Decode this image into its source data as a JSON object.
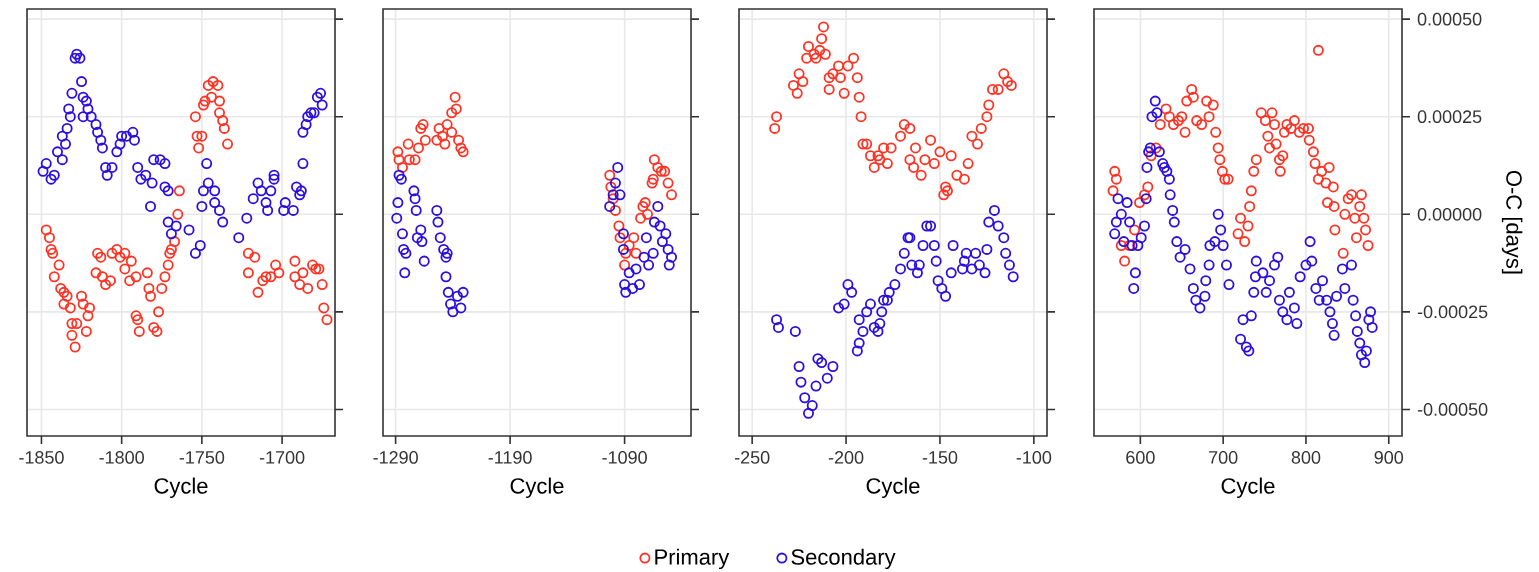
{
  "chart_data": [
    {
      "type": "scatter",
      "xlabel": "Cycle",
      "xlim": [
        -1859,
        -1667
      ],
      "xticks": [
        -1850,
        -1800,
        -1750,
        -1700
      ],
      "ylim": [
        -0.000568,
        0.000526
      ],
      "yticks": [
        {
          "value": 0.0005,
          "label": null
        },
        {
          "value": 0.00025,
          "label": null
        },
        {
          "value": 0,
          "label": null
        },
        {
          "value": -0.00025,
          "label": null
        },
        {
          "value": -0.0005,
          "label": null
        }
      ],
      "tick_labels": "x",
      "grid": true,
      "marker": "circle",
      "series": [
        {
          "color": "#ff3324",
          "x": [
            -1847,
            -1845,
            -1844,
            -1843,
            -1842,
            -1839,
            -1838,
            -1836,
            -1836,
            -1834,
            -1832,
            -1831,
            -1831,
            -1829,
            -1828,
            -1825,
            -1824,
            -1822,
            -1821,
            -1820,
            -1815,
            -1813,
            -1816,
            -1812,
            -1810,
            -1807,
            -1806,
            -1803,
            -1801,
            -1798,
            -1798,
            -1795,
            -1794,
            -1791,
            -1791,
            -1790,
            -1789,
            -1784,
            -1783,
            -1782,
            -1780,
            -1778,
            -1777,
            -1775,
            -1773,
            -1771,
            -1770,
            -1769,
            -1767,
            -1765,
            -1764,
            -1754,
            -1753,
            -1752,
            -1750,
            -1749,
            -1748,
            -1746,
            -1744,
            -1743,
            -1740,
            -1739,
            -1739,
            -1737,
            -1736,
            -1734,
            -1721,
            -1717,
            -1721,
            -1715,
            -1712,
            -1710,
            -1707,
            -1704,
            -1702,
            -1692,
            -1692,
            -1689,
            -1687,
            -1684,
            -1681,
            -1679,
            -1677,
            -1675,
            -1674,
            -1672
          ],
          "values": [
            -4e-05,
            -6e-05,
            -9e-05,
            -0.0001,
            -0.00016,
            -0.00013,
            -0.00019,
            -0.0002,
            -0.00023,
            -0.00021,
            -0.00024,
            -0.00028,
            -0.00031,
            -0.00034,
            -0.00028,
            -0.00021,
            -0.00023,
            -0.0003,
            -0.00026,
            -0.00024,
            -0.0001,
            -0.00011,
            -0.00015,
            -0.00016,
            -0.00018,
            -0.00017,
            -0.0001,
            -9e-05,
            -0.00011,
            -0.0001,
            -0.00014,
            -0.00017,
            -0.00012,
            -0.00016,
            -0.00026,
            -0.00027,
            -0.0003,
            -0.00015,
            -0.00019,
            -0.00021,
            -0.00029,
            -0.0003,
            -0.00025,
            -0.00019,
            -0.00016,
            -0.00013,
            -0.0001,
            -9e-05,
            -7e-05,
            0,
            6e-05,
            0.00025,
            0.0002,
            0.00017,
            0.0002,
            0.00028,
            0.00029,
            0.00033,
            0.0003,
            0.00034,
            0.00033,
            0.00029,
            0.00026,
            0.00024,
            0.00022,
            0.00018,
            -0.0001,
            -0.00011,
            -0.00015,
            -0.0002,
            -0.00017,
            -0.00016,
            -0.00016,
            -0.00013,
            -0.00015,
            -0.00012,
            -0.00016,
            -0.00018,
            -0.00015,
            -0.00019,
            -0.00013,
            -0.00014,
            -0.00014,
            -0.00018,
            -0.00024,
            -0.00027
          ]
        },
        {
          "color": "#2b0fe0",
          "x": [
            -1849,
            -1847,
            -1844,
            -1842,
            -1840,
            -1837,
            -1837,
            -1835,
            -1834,
            -1833,
            -1832,
            -1831,
            -1829,
            -1828,
            -1826,
            -1825,
            -1824,
            -1824,
            -1822,
            -1821,
            -1819,
            -1816,
            -1815,
            -1813,
            -1812,
            -1810,
            -1809,
            -1806,
            -1803,
            -1801,
            -1800,
            -1797,
            -1793,
            -1792,
            -1790,
            -1788,
            -1785,
            -1782,
            -1781,
            -1780,
            -1776,
            -1773,
            -1773,
            -1771,
            -1771,
            -1769,
            -1766,
            -1758,
            -1754,
            -1751,
            -1750,
            -1749,
            -1747,
            -1746,
            -1742,
            -1742,
            -1739,
            -1737,
            -1727,
            -1722,
            -1718,
            -1715,
            -1713,
            -1710,
            -1709,
            -1707,
            -1705,
            -1705,
            -1699,
            -1698,
            -1693,
            -1691,
            -1689,
            -1688,
            -1687,
            -1687,
            -1685,
            -1684,
            -1682,
            -1680,
            -1678,
            -1676,
            -1675
          ],
          "values": [
            0.00011,
            0.00013,
            9e-05,
            0.0001,
            0.00016,
            0.00014,
            0.0002,
            0.00018,
            0.00022,
            0.00027,
            0.00025,
            0.00031,
            0.0004,
            0.00041,
            0.0004,
            0.00034,
            0.0003,
            0.00025,
            0.00029,
            0.00027,
            0.00025,
            0.00023,
            0.00021,
            0.00019,
            0.00017,
            0.00012,
            0.0001,
            0.00012,
            0.00016,
            0.00018,
            0.0002,
            0.0002,
            0.00021,
            0.00019,
            0.00012,
            9e-05,
            0.0001,
            2e-05,
            8e-05,
            0.00014,
            0.00014,
            0.00013,
            7e-05,
            6e-05,
            -2e-05,
            -5e-05,
            -3e-05,
            -4e-05,
            -0.0001,
            -8e-05,
            2e-05,
            6e-05,
            0.00013,
            8e-05,
            6e-05,
            3e-05,
            1e-05,
            -2e-05,
            -6e-05,
            -1e-05,
            4e-05,
            8e-05,
            6e-05,
            3e-05,
            1e-05,
            6e-05,
            0.0001,
            9e-05,
            1e-05,
            3e-05,
            1e-05,
            7e-05,
            5e-05,
            6e-05,
            0.00013,
            0.00021,
            0.00023,
            0.00025,
            0.00026,
            0.00026,
            0.0003,
            0.00031,
            0.00028
          ]
        }
      ]
    },
    {
      "type": "scatter",
      "xlabel": "Cycle",
      "xlim": [
        -1301,
        -1032
      ],
      "xticks": [
        -1290,
        -1190,
        -1090
      ],
      "ylim": [
        -0.000568,
        0.000526
      ],
      "yticks": [
        {
          "value": 0.0005,
          "label": null
        },
        {
          "value": 0.00025,
          "label": null
        },
        {
          "value": 0,
          "label": null
        },
        {
          "value": -0.00025,
          "label": null
        },
        {
          "value": -0.0005,
          "label": null
        }
      ],
      "tick_labels": "x",
      "grid": true,
      "marker": "circle",
      "series": [
        {
          "color": "#ff3324",
          "x": [
            -1288,
            -1287,
            -1284,
            -1279,
            -1278,
            -1273,
            -1270,
            -1268,
            -1266,
            -1264,
            -1254,
            -1252,
            -1249,
            -1247,
            -1245,
            -1241,
            -1241,
            -1238,
            -1237,
            -1235,
            -1233,
            -1231,
            -1103,
            -1102,
            -1100,
            -1098,
            -1095,
            -1094,
            -1090,
            -1089,
            -1086,
            -1082,
            -1080,
            -1076,
            -1074,
            -1072,
            -1070,
            -1066,
            -1064,
            -1061,
            -1058,
            -1055,
            -1052,
            -1049,
            -1065
          ],
          "values": [
            0.00016,
            0.00014,
            0.00012,
            0.00018,
            0.00014,
            0.00014,
            0.00017,
            0.00022,
            0.00023,
            0.00019,
            0.00019,
            0.00022,
            0.0002,
            0.00018,
            0.00023,
            0.00021,
            0.00026,
            0.0003,
            0.00027,
            0.00019,
            0.00017,
            0.00016,
            0.0001,
            7e-05,
            4e-05,
            1e-05,
            -3e-05,
            -6e-05,
            -0.00013,
            -0.0001,
            -8e-05,
            -6e-05,
            -0.0001,
            -1e-05,
            2e-05,
            3e-05,
            0,
            8e-05,
            0.00014,
            0.00012,
            0.00011,
            0.00011,
            8e-05,
            5e-05,
            9e-05
          ]
        },
        {
          "color": "#2b0fe0",
          "x": [
            -1287,
            -1285,
            -1288,
            -1289,
            -1284,
            -1283,
            -1281,
            -1282,
            -1274,
            -1273,
            -1272,
            -1271,
            -1268,
            -1267,
            -1265,
            -1254,
            -1253,
            -1251,
            -1248,
            -1246,
            -1245,
            -1246,
            -1244,
            -1242,
            -1240,
            -1236,
            -1233,
            -1231,
            -1096,
            -1098,
            -1100,
            -1103,
            -1094,
            -1091,
            -1091,
            -1090,
            -1089,
            -1086,
            -1083,
            -1080,
            -1077,
            -1073,
            -1071,
            -1069,
            -1065,
            -1064,
            -1061,
            -1059,
            -1057,
            -1054,
            -1052,
            -1051,
            -1049
          ],
          "values": [
            0.0001,
            9e-05,
            3e-05,
            -1e-05,
            -5e-05,
            -9e-05,
            -0.0001,
            -0.00015,
            6e-05,
            4e-05,
            1e-05,
            -6e-05,
            -4e-05,
            -7e-05,
            -0.00012,
            1e-05,
            -2e-05,
            -6e-05,
            -9e-05,
            -0.00011,
            -0.0001,
            -0.00016,
            -0.0002,
            -0.00023,
            -0.00025,
            -0.00021,
            -0.00024,
            -0.0002,
            0.00012,
            8e-05,
            5e-05,
            2e-05,
            5e-05,
            -5e-05,
            -9e-05,
            -0.00018,
            -0.0002,
            -0.00015,
            -0.00019,
            -0.00014,
            -0.00018,
            -0.00011,
            -6e-05,
            -0.00013,
            -0.0001,
            -2e-05,
            2e-05,
            -3e-05,
            -7e-05,
            -5e-05,
            -9e-05,
            -0.00013,
            -0.00011
          ]
        }
      ]
    },
    {
      "type": "scatter",
      "xlabel": "Cycle",
      "xlim": [
        -257,
        -93
      ],
      "xticks": [
        -250,
        -200,
        -150,
        -100
      ],
      "ylim": [
        -0.000568,
        0.000526
      ],
      "yticks": [
        {
          "value": 0.0005,
          "label": null
        },
        {
          "value": 0.00025,
          "label": null
        },
        {
          "value": 0,
          "label": null
        },
        {
          "value": -0.00025,
          "label": null
        },
        {
          "value": -0.0005,
          "label": null
        }
      ],
      "tick_labels": "x",
      "grid": true,
      "marker": "circle",
      "series": [
        {
          "color": "#ff3324",
          "x": [
            -238,
            -237,
            -228,
            -226,
            -225,
            -223,
            -221,
            -220,
            -217,
            -216,
            -214,
            -213,
            -212,
            -211,
            -209,
            -209,
            -207,
            -204,
            -203,
            -201,
            -199,
            -196,
            -194,
            -193,
            -192,
            -191,
            -189,
            -187,
            -185,
            -183,
            -182,
            -180,
            -178,
            -176,
            -171,
            -169,
            -166,
            -166,
            -164,
            -163,
            -160,
            -158,
            -155,
            -153,
            -150,
            -148,
            -147,
            -146,
            -144,
            -141,
            -137,
            -135,
            -133,
            -130,
            -128,
            -125,
            -124,
            -122,
            -119,
            -116,
            -114,
            -112
          ],
          "values": [
            0.00022,
            0.00025,
            0.00033,
            0.00031,
            0.00036,
            0.00034,
            0.0004,
            0.00043,
            0.00041,
            0.0004,
            0.00042,
            0.00045,
            0.00048,
            0.00041,
            0.00035,
            0.00032,
            0.00036,
            0.00038,
            0.00035,
            0.00031,
            0.00038,
            0.0004,
            0.00035,
            0.0003,
            0.00025,
            0.00018,
            0.00018,
            0.00015,
            0.00012,
            0.00015,
            0.00014,
            0.00017,
            0.00013,
            0.00017,
            0.0002,
            0.00023,
            0.00022,
            0.00014,
            0.00012,
            0.00017,
            0.0001,
            0.00014,
            0.00019,
            0.00013,
            0.00016,
            5e-05,
            7e-05,
            6e-05,
            0.00015,
            0.0001,
            9e-05,
            0.00013,
            0.0002,
            0.00018,
            0.00022,
            0.00025,
            0.00028,
            0.00032,
            0.00032,
            0.00036,
            0.00034,
            0.00033
          ]
        },
        {
          "color": "#2b0fe0",
          "x": [
            -237,
            -236,
            -227,
            -225,
            -224,
            -222,
            -220,
            -218,
            -216,
            -215,
            -213,
            -210,
            -207,
            -204,
            -201,
            -199,
            -197,
            -194,
            -193,
            -193,
            -191,
            -189,
            -187,
            -185,
            -183,
            -182,
            -181,
            -180,
            -178,
            -177,
            -174,
            -171,
            -169,
            -167,
            -166,
            -165,
            -162,
            -161,
            -159,
            -157,
            -155,
            -153,
            -152,
            -151,
            -149,
            -147,
            -144,
            -143,
            -138,
            -137,
            -136,
            -133,
            -131,
            -129,
            -126,
            -125,
            -124,
            -121,
            -119,
            -116,
            -115,
            -113,
            -111
          ],
          "values": [
            -0.00027,
            -0.00029,
            -0.0003,
            -0.00039,
            -0.00043,
            -0.00047,
            -0.00051,
            -0.00049,
            -0.00044,
            -0.00037,
            -0.00038,
            -0.00042,
            -0.00039,
            -0.00024,
            -0.00023,
            -0.00018,
            -0.0002,
            -0.00035,
            -0.00033,
            -0.00027,
            -0.0003,
            -0.00025,
            -0.00023,
            -0.00029,
            -0.0003,
            -0.00028,
            -0.00025,
            -0.00022,
            -0.00022,
            -0.0002,
            -0.00018,
            -0.00014,
            -0.0001,
            -6e-05,
            -6e-05,
            -0.00013,
            -0.00015,
            -0.00013,
            -8e-05,
            -3e-05,
            -3e-05,
            -8e-05,
            -0.00012,
            -0.00017,
            -0.00019,
            -0.00021,
            -0.00015,
            -8e-05,
            -0.00014,
            -0.00012,
            -0.0001,
            -0.00014,
            -0.0001,
            -0.00013,
            -0.00015,
            -9e-05,
            -2e-05,
            1e-05,
            -3e-05,
            -6e-05,
            -0.0001,
            -0.00013,
            -0.00016
          ]
        }
      ]
    },
    {
      "type": "scatter",
      "xlabel": "Cycle",
      "ylabel": "O-C [days]",
      "xlim": [
        544,
        916
      ],
      "xticks": [
        600,
        700,
        800,
        900
      ],
      "ylim": [
        -0.000568,
        0.000526
      ],
      "yticks": [
        {
          "value": 0.0005,
          "label": "0.00050"
        },
        {
          "value": 0.00025,
          "label": "0.00025"
        },
        {
          "value": 0,
          "label": "0.00000"
        },
        {
          "value": -0.00025,
          "label": "-0.00025"
        },
        {
          "value": -0.0005,
          "label": "-0.00050"
        }
      ],
      "grid": true,
      "marker": "circle",
      "legend": "bottom",
      "series": [
        {
          "name": "Primary",
          "color": "#ff3324",
          "x": [
            567,
            569,
            571,
            577,
            581,
            587,
            593,
            599,
            605,
            609,
            613,
            619,
            624,
            631,
            635,
            640,
            646,
            650,
            654,
            656,
            662,
            664,
            668,
            674,
            680,
            683,
            688,
            691,
            694,
            696,
            699,
            702,
            706,
            718,
            721,
            726,
            730,
            732,
            734,
            737,
            740,
            746,
            751,
            754,
            756,
            759,
            762,
            764,
            768,
            769,
            772,
            774,
            777,
            782,
            786,
            792,
            797,
            803,
            804,
            809,
            815,
            811,
            815,
            819,
            824,
            828,
            833,
            826,
            834,
            835,
            845,
            847,
            851,
            855,
            859,
            861,
            865,
            867,
            870,
            872,
            875
          ],
          "values": [
            6e-05,
            0.00011,
            9e-05,
            -8e-05,
            -0.00012,
            -8e-05,
            -4e-05,
            3e-05,
            5e-05,
            7e-05,
            0.00015,
            0.00017,
            0.00023,
            0.00027,
            0.00025,
            0.00023,
            0.00024,
            0.00025,
            0.00021,
            0.00029,
            0.00032,
            0.0003,
            0.00024,
            0.00023,
            0.00029,
            0.00025,
            0.00028,
            0.00021,
            0.00017,
            0.00014,
            0.00011,
            9e-05,
            9e-05,
            -5e-05,
            -1e-05,
            -7e-05,
            -3e-05,
            2e-05,
            6e-05,
            0.00011,
            0.00014,
            0.00026,
            0.00024,
            0.0002,
            0.00017,
            0.00026,
            0.00023,
            0.00018,
            0.00014,
            0.00011,
            0.00015,
            0.00021,
            0.00023,
            0.00022,
            0.00024,
            0.00021,
            0.00022,
            0.00022,
            0.00019,
            0.00016,
            0.00042,
            0.00013,
            9e-05,
            0.00011,
            8e-05,
            0.00012,
            7e-05,
            3e-05,
            2e-05,
            -4e-05,
            -0.0001,
            0,
            4e-05,
            5e-05,
            -1e-05,
            -6e-05,
            2e-05,
            5e-05,
            -1e-05,
            -4e-05,
            -8e-05
          ]
        },
        {
          "name": "Secondary",
          "color": "#2b0fe0",
          "x": [
            569,
            573,
            571,
            577,
            580,
            584,
            587,
            590,
            592,
            594,
            597,
            601,
            605,
            607,
            608,
            610,
            612,
            614,
            618,
            620,
            623,
            627,
            629,
            632,
            635,
            636,
            639,
            641,
            644,
            648,
            654,
            660,
            664,
            667,
            672,
            678,
            679,
            683,
            684,
            690,
            694,
            697,
            700,
            704,
            707,
            721,
            724,
            728,
            731,
            734,
            737,
            739,
            740,
            748,
            752,
            756,
            762,
            766,
            768,
            772,
            777,
            780,
            786,
            789,
            793,
            800,
            805,
            807,
            812,
            816,
            820,
            825,
            829,
            832,
            834,
            837,
            844,
            847,
            855,
            857,
            860,
            862,
            865,
            867,
            871,
            873,
            876,
            878,
            880
          ],
          "values": [
            -5e-05,
            4e-05,
            -2e-05,
            0,
            -7e-05,
            3e-05,
            -2e-05,
            -8e-05,
            -0.00019,
            -0.00015,
            -8e-05,
            -6e-05,
            -3e-05,
            4e-05,
            0.00012,
            0.00016,
            0.00017,
            0.00025,
            0.00029,
            0.00026,
            0.00016,
            0.00013,
            0.00012,
            0.00011,
            9e-05,
            5e-05,
            1e-05,
            -2e-05,
            -7e-05,
            -0.00011,
            -9e-05,
            -0.00014,
            -0.00019,
            -0.00022,
            -0.00024,
            -0.00021,
            -0.00017,
            -0.00013,
            -8e-05,
            -7e-05,
            0,
            -4e-05,
            -8e-05,
            -0.00013,
            -0.00018,
            -0.00032,
            -0.00027,
            -0.00034,
            -0.00035,
            -0.00026,
            -0.0002,
            -0.00016,
            -0.00012,
            -0.00015,
            -0.0002,
            -0.00017,
            -0.00013,
            -0.00011,
            -0.00022,
            -0.00025,
            -0.00027,
            -0.0002,
            -0.00024,
            -0.00028,
            -0.00016,
            -0.00013,
            -7e-05,
            -0.00012,
            -0.00019,
            -0.00022,
            -0.00017,
            -0.00022,
            -0.00025,
            -0.00028,
            -0.00031,
            -0.00021,
            -0.00014,
            -0.00019,
            -0.00013,
            -0.00022,
            -0.00026,
            -0.0003,
            -0.00033,
            -0.00036,
            -0.00038,
            -0.00035,
            -0.00027,
            -0.00025,
            -0.00029
          ]
        }
      ]
    }
  ]
}
